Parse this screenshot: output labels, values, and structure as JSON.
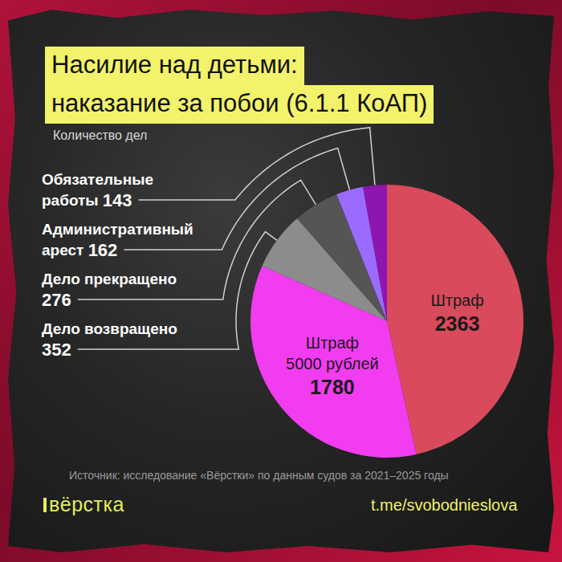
{
  "chart_data": {
    "type": "pie",
    "title": "Насилие над детьми: наказание за побои (6.1.1 КоАП)",
    "subtitle": "Количество дел",
    "categories": [
      "Штраф",
      "Штраф 5000 рублей",
      "Дело возвращено",
      "Дело прекращено",
      "Административный арест",
      "Обязательные работы"
    ],
    "values": [
      2363,
      1780,
      352,
      276,
      162,
      143
    ],
    "colors": [
      "#d84a5c",
      "#f23cf0",
      "#8c8c8c",
      "#555555",
      "#9b6bff",
      "#8e16b0"
    ],
    "data_labels": true,
    "source": "Источник: исследование «Вёрстки» по данным судов за 2021–2025 годы",
    "logo": "вёрстка",
    "link": "t.me/svobodnieslova"
  }
}
